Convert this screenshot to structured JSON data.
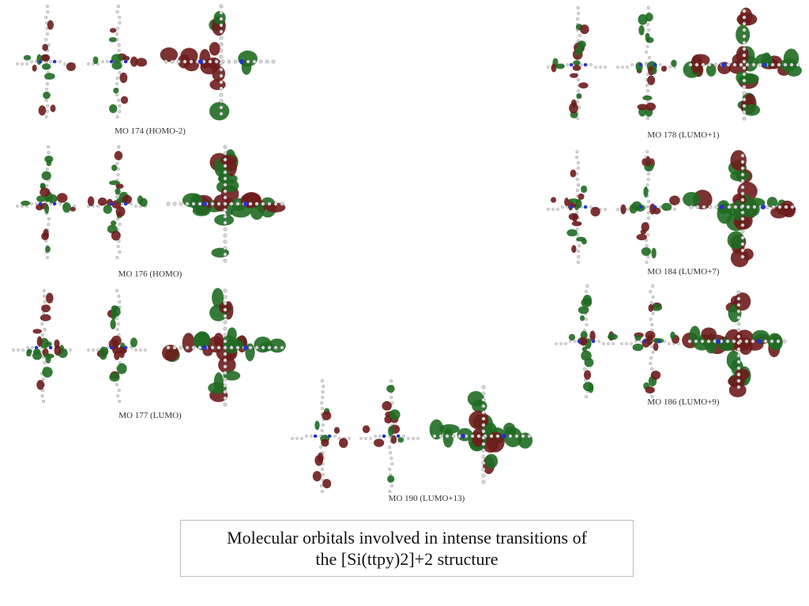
{
  "colors": {
    "positive_lobe": "#1f6b22",
    "negative_lobe": "#6e1c1c",
    "nitrogen": "#2233cc",
    "atom": "#d8d8d8"
  },
  "panels": [
    {
      "id": "mo174",
      "label": "MO 174 (HOMO-2)"
    },
    {
      "id": "mo176",
      "label": "MO 176 (HOMO)"
    },
    {
      "id": "mo177",
      "label": "MO 177 (LUMO)"
    },
    {
      "id": "mo178",
      "label": "MO 178 (LUMO+1)"
    },
    {
      "id": "mo184",
      "label": "MO 184 (LUMO+7)"
    },
    {
      "id": "mo186",
      "label": "MO 186 (LUMO+9)"
    },
    {
      "id": "mo190",
      "label": "MO 190 (LUMO+13)"
    }
  ],
  "caption": {
    "line1": "Molecular orbitals involved in intense transitions of",
    "line2": "the [Si(ttpy)2]+2 structure"
  }
}
